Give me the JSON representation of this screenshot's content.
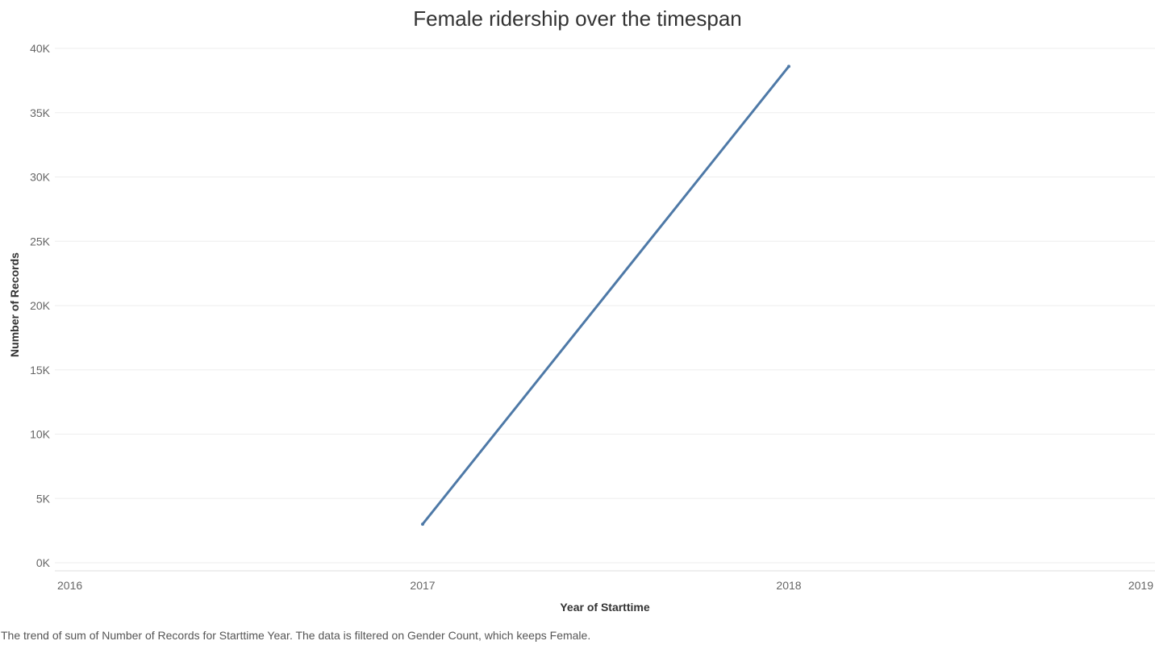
{
  "chart_data": {
    "type": "line",
    "title": "Female ridership over the timespan",
    "xlabel": "Year of Starttime",
    "ylabel": "Number of Records",
    "x_ticks": [
      "2016",
      "2017",
      "2018",
      "2019"
    ],
    "xlim": [
      2016,
      2019
    ],
    "y_ticks": [
      "0K",
      "5K",
      "10K",
      "15K",
      "20K",
      "25K",
      "30K",
      "35K",
      "40K"
    ],
    "ylim": [
      0,
      40000
    ],
    "grid": true,
    "series": [
      {
        "x": [
          2017,
          2018
        ],
        "values": [
          3000,
          38600
        ]
      }
    ],
    "colors": {
      "line": "#4e79a7",
      "grid": "#eeeeee",
      "axis_text": "#666666",
      "title_text": "#333333"
    }
  },
  "caption": "The trend of sum of Number of Records for Starttime Year. The data is filtered on Gender Count, which keeps Female."
}
